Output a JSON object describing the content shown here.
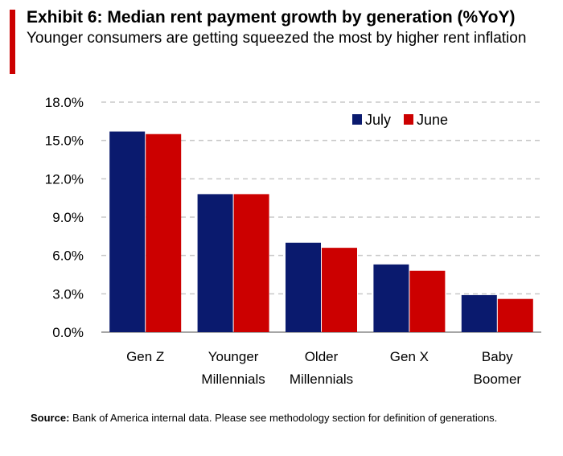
{
  "header": {
    "title": "Exhibit 6: Median rent payment growth by generation (%YoY)",
    "subtitle": "Younger consumers are getting squeezed the most by higher rent inflation"
  },
  "colors": {
    "accent": "#cc0000",
    "july": "#0a1a6e",
    "june": "#cc0000",
    "grid": "#c8c8c8",
    "axis": "#888888"
  },
  "footer": {
    "source_label": "Source:",
    "source_text": "Bank of America internal data. Please see methodology section  for definition of generations."
  },
  "chart_data": {
    "type": "bar",
    "categories": [
      [
        "Gen Z"
      ],
      [
        "Younger",
        "Millennials"
      ],
      [
        "Older",
        "Millennials"
      ],
      [
        "Gen X"
      ],
      [
        "Baby",
        "Boomer"
      ]
    ],
    "series": [
      {
        "name": "July",
        "values": [
          15.7,
          10.8,
          7.0,
          5.3,
          2.9
        ]
      },
      {
        "name": "June",
        "values": [
          15.5,
          10.8,
          6.6,
          4.8,
          2.6
        ]
      }
    ],
    "ylim": [
      0,
      18
    ],
    "yticks": [
      "0.0%",
      "3.0%",
      "6.0%",
      "9.0%",
      "12.0%",
      "15.0%",
      "18.0%"
    ],
    "grid": true,
    "legend_position": "top-right"
  }
}
